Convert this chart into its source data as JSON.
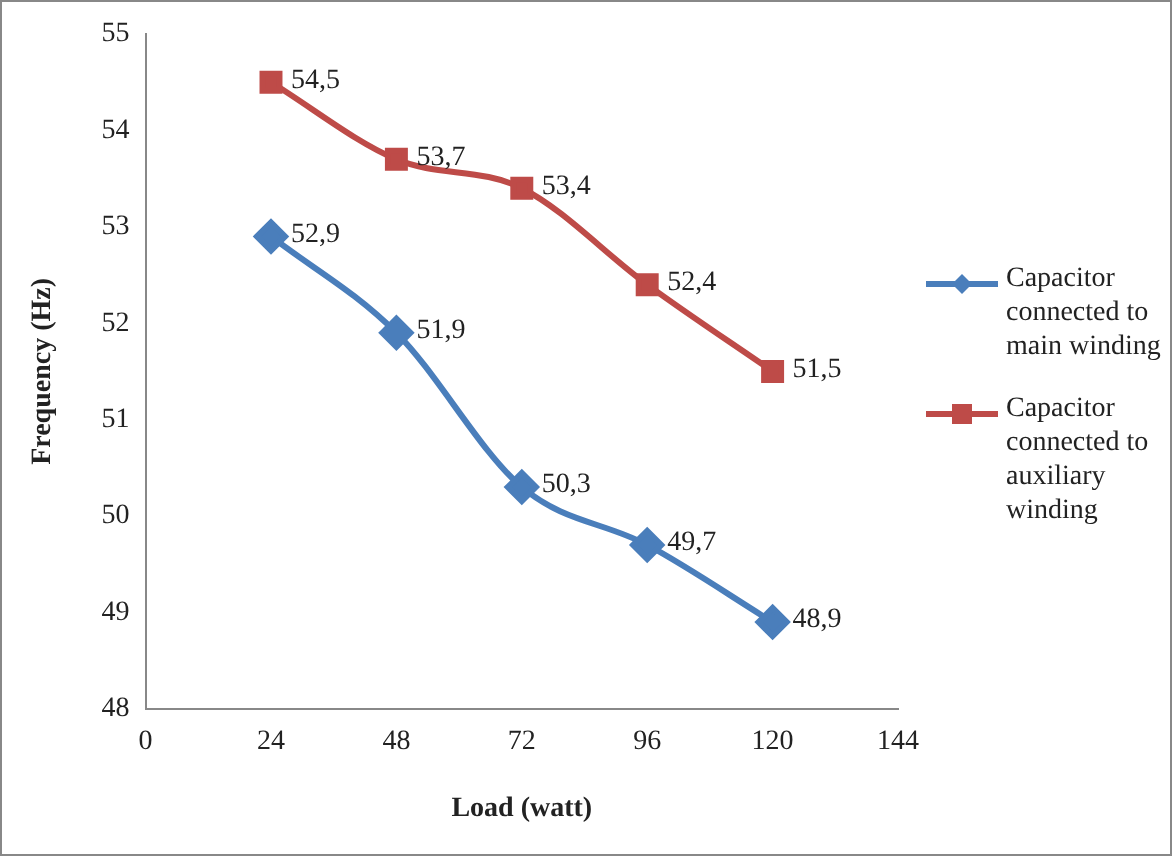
{
  "chart_data": {
    "type": "line",
    "xlabel": "Load (watt)",
    "ylabel": "Frequency (Hz)",
    "x": [
      24,
      48,
      72,
      96,
      120
    ],
    "xlim": [
      0,
      144
    ],
    "xticks": [
      0,
      24,
      48,
      72,
      96,
      120,
      144
    ],
    "ylim": [
      48,
      55
    ],
    "yticks": [
      48,
      49,
      50,
      51,
      52,
      53,
      54,
      55
    ],
    "grid": false,
    "legend": "right",
    "line_style": "solid",
    "series": [
      {
        "name": "Capacitor connected to main winding",
        "color": "#4a7ebb",
        "marker": "diamond",
        "values": [
          52.9,
          51.9,
          50.3,
          49.7,
          48.9
        ],
        "value_labels": [
          "52,9",
          "51,9",
          "50,3",
          "49,7",
          "48,9"
        ]
      },
      {
        "name": "Capacitor connected to auxiliary winding",
        "color": "#be4b48",
        "marker": "square",
        "values": [
          54.5,
          53.7,
          53.4,
          52.4,
          51.5
        ],
        "value_labels": [
          "54,5",
          "53,7",
          "53,4",
          "52,4",
          "51,5"
        ]
      }
    ]
  }
}
